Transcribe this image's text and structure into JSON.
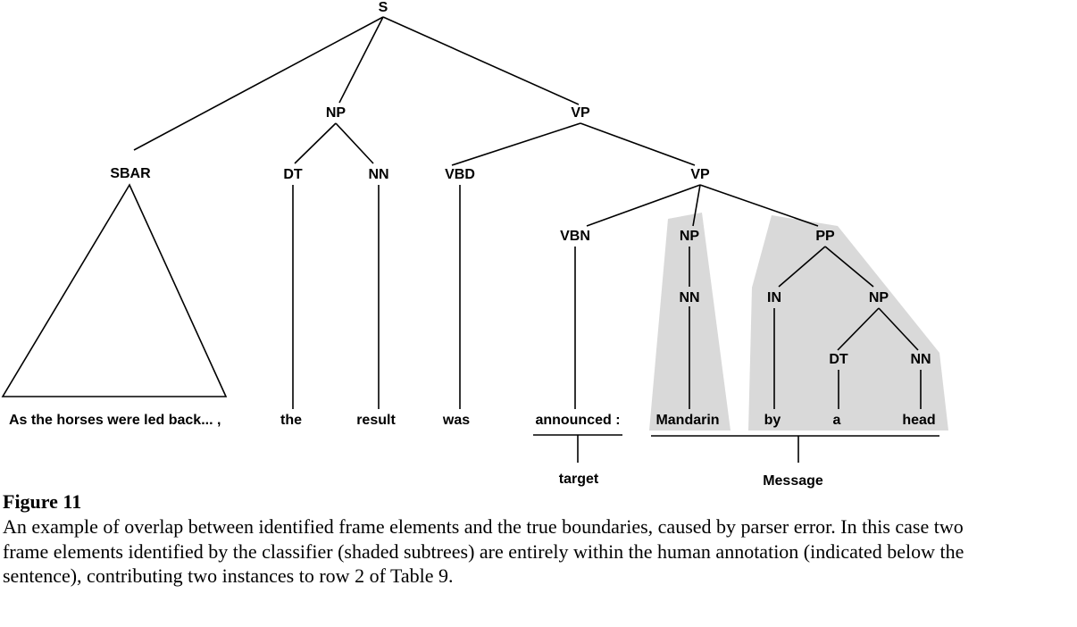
{
  "tree": {
    "labels": {
      "s": "S",
      "np_subj": "NP",
      "vp_top": "VP",
      "sbar": "SBAR",
      "dt1": "DT",
      "nn1": "NN",
      "vbd": "VBD",
      "vp_inner": "VP",
      "vbn": "VBN",
      "np_obj": "NP",
      "pp": "PP",
      "nn_obj": "NN",
      "in": "IN",
      "np_pp": "NP",
      "dt2": "DT",
      "nn2": "NN"
    },
    "words": {
      "clause": "As the horses were led back... ,",
      "the": "the",
      "result": "result",
      "was": "was",
      "announced": "announced :",
      "mandarin": "Mandarin",
      "by": "by",
      "a": "a",
      "head": "head"
    },
    "annotations": {
      "target": "target",
      "message": "Message"
    }
  },
  "caption": {
    "figure_label": "Figure 11",
    "text": "An example of overlap between identified frame elements and the true boundaries, caused by parser error. In this case two frame elements identified by the classifier (shaded subtrees) are entirely within the human annotation (indicated below the sentence), contributing two instances to row 2 of Table 9."
  }
}
